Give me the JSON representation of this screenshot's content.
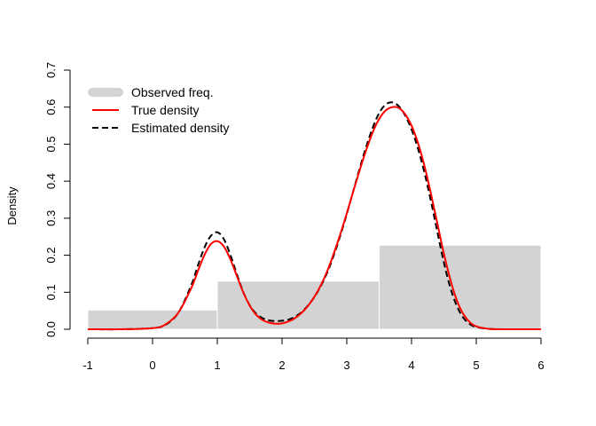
{
  "chart_data": {
    "type": "line",
    "title": "",
    "xlabel": "",
    "ylabel": "Density",
    "xlim": [
      -1,
      6
    ],
    "ylim": [
      0,
      0.7
    ],
    "x_ticks": [
      -1,
      0,
      1,
      2,
      3,
      4,
      5,
      6
    ],
    "y_ticks": [
      0.0,
      0.1,
      0.2,
      0.3,
      0.4,
      0.5,
      0.6,
      0.7
    ],
    "y_tick_labels": [
      "0.0",
      "0.1",
      "0.2",
      "0.3",
      "0.4",
      "0.5",
      "0.6",
      "0.7"
    ],
    "grid": false,
    "legend_position": "top-left",
    "histogram": {
      "name": "Observed freq.",
      "color": "#d3d3d3",
      "bins": [
        {
          "x0": -1,
          "x1": 1,
          "value": 0.052
        },
        {
          "x0": 1,
          "x1": 3.5,
          "value": 0.13
        },
        {
          "x0": 3.5,
          "x1": 6,
          "value": 0.227
        }
      ]
    },
    "series": [
      {
        "name": "True density",
        "color": "#ff0000",
        "style": "solid",
        "x": [
          -1,
          -0.5,
          0,
          0.2,
          0.4,
          0.6,
          0.7,
          0.8,
          0.9,
          1.0,
          1.1,
          1.2,
          1.3,
          1.4,
          1.5,
          1.6,
          1.7,
          1.8,
          1.9,
          2.0,
          2.1,
          2.2,
          2.3,
          2.4,
          2.5,
          2.6,
          2.7,
          2.8,
          2.9,
          3.0,
          3.1,
          3.2,
          3.3,
          3.4,
          3.5,
          3.6,
          3.7,
          3.8,
          3.9,
          4.0,
          4.1,
          4.2,
          4.3,
          4.4,
          4.5,
          4.6,
          4.7,
          4.8,
          4.9,
          5.0,
          5.2,
          5.5,
          6.0
        ],
        "y": [
          0.0,
          0.0,
          0.003,
          0.013,
          0.045,
          0.112,
          0.157,
          0.2,
          0.23,
          0.238,
          0.224,
          0.19,
          0.145,
          0.1,
          0.064,
          0.039,
          0.025,
          0.018,
          0.015,
          0.016,
          0.021,
          0.03,
          0.044,
          0.063,
          0.088,
          0.119,
          0.158,
          0.205,
          0.257,
          0.313,
          0.372,
          0.43,
          0.484,
          0.532,
          0.568,
          0.591,
          0.6,
          0.598,
          0.581,
          0.55,
          0.503,
          0.441,
          0.366,
          0.285,
          0.204,
          0.134,
          0.078,
          0.041,
          0.019,
          0.008,
          0.001,
          0.0,
          0.0
        ]
      },
      {
        "name": "Estimated density",
        "color": "#000000",
        "style": "dashed",
        "x": [
          -1,
          -0.5,
          0,
          0.2,
          0.4,
          0.6,
          0.7,
          0.8,
          0.9,
          1.0,
          1.1,
          1.2,
          1.3,
          1.4,
          1.5,
          1.6,
          1.7,
          1.8,
          1.9,
          2.0,
          2.1,
          2.2,
          2.3,
          2.4,
          2.5,
          2.6,
          2.7,
          2.8,
          2.9,
          3.0,
          3.1,
          3.2,
          3.3,
          3.4,
          3.5,
          3.6,
          3.7,
          3.8,
          3.9,
          4.0,
          4.1,
          4.2,
          4.3,
          4.4,
          4.5,
          4.6,
          4.7,
          4.8,
          4.9,
          5.0,
          5.2,
          5.5,
          6.0
        ],
        "y": [
          0.0,
          0.0,
          0.003,
          0.012,
          0.045,
          0.12,
          0.172,
          0.22,
          0.252,
          0.262,
          0.244,
          0.202,
          0.15,
          0.101,
          0.065,
          0.042,
          0.03,
          0.024,
          0.022,
          0.023,
          0.026,
          0.034,
          0.046,
          0.064,
          0.087,
          0.117,
          0.154,
          0.2,
          0.253,
          0.311,
          0.373,
          0.435,
          0.493,
          0.544,
          0.584,
          0.607,
          0.613,
          0.603,
          0.578,
          0.54,
          0.488,
          0.423,
          0.346,
          0.262,
          0.18,
          0.112,
          0.063,
          0.031,
          0.014,
          0.006,
          0.001,
          0.0,
          0.0
        ]
      }
    ]
  }
}
